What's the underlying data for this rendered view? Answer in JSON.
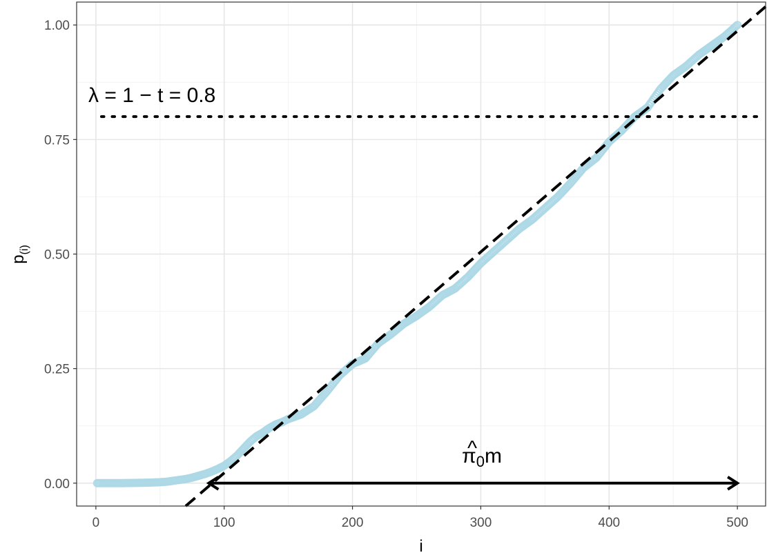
{
  "chart_data": {
    "type": "scatter",
    "title": "",
    "xlabel": "i",
    "ylabel": "p",
    "ylabel_subscript": "(i)",
    "xlim": [
      -15,
      522
    ],
    "ylim": [
      -0.05,
      1.05
    ],
    "xticks": [
      0,
      100,
      200,
      300,
      400,
      500
    ],
    "xtick_labels": [
      "0",
      "100",
      "200",
      "300",
      "400",
      "500"
    ],
    "yticks": [
      0,
      0.25,
      0.5,
      0.75,
      1.0
    ],
    "ytick_labels": [
      "0.00",
      "0.25",
      "0.50",
      "0.75",
      "1.00"
    ],
    "grid": true,
    "point_color": "#add8e6",
    "series": [
      {
        "values_x": [
          1,
          10,
          20,
          30,
          40,
          50,
          55,
          60,
          65,
          70,
          75,
          80,
          85,
          90,
          95,
          100,
          105,
          110,
          115,
          120,
          125,
          130,
          135,
          140,
          145,
          150,
          160,
          170,
          180,
          190,
          200,
          210,
          220,
          230,
          240,
          250,
          260,
          270,
          280,
          290,
          300,
          310,
          320,
          330,
          340,
          350,
          360,
          370,
          380,
          390,
          400,
          410,
          420,
          430,
          440,
          450,
          460,
          470,
          480,
          490,
          500
        ],
        "values_y": [
          0.0,
          0.0,
          0.0,
          0.0005,
          0.001,
          0.002,
          0.003,
          0.005,
          0.007,
          0.009,
          0.012,
          0.016,
          0.02,
          0.025,
          0.031,
          0.038,
          0.048,
          0.06,
          0.075,
          0.09,
          0.102,
          0.11,
          0.12,
          0.128,
          0.133,
          0.14,
          0.15,
          0.168,
          0.2,
          0.235,
          0.26,
          0.272,
          0.305,
          0.325,
          0.348,
          0.365,
          0.385,
          0.41,
          0.425,
          0.45,
          0.48,
          0.505,
          0.53,
          0.555,
          0.575,
          0.6,
          0.625,
          0.655,
          0.688,
          0.71,
          0.745,
          0.77,
          0.8,
          0.82,
          0.86,
          0.89,
          0.91,
          0.935,
          0.955,
          0.975,
          1.0
        ]
      }
    ],
    "hline": {
      "y": 0.8,
      "style": "dotted"
    },
    "fit_line": {
      "x0": 70,
      "y0": -0.05,
      "x1": 522,
      "y1": 1.04,
      "style": "dashed"
    },
    "arrow": {
      "x_from": 88,
      "x_to": 500,
      "y": 0.0
    },
    "annotations": {
      "lambda_text": "λ =  1 − t = 0.8",
      "pi_text_main": "π",
      "pi_hat": "^",
      "pi_sub": "0",
      "pi_suffix": "m"
    }
  }
}
